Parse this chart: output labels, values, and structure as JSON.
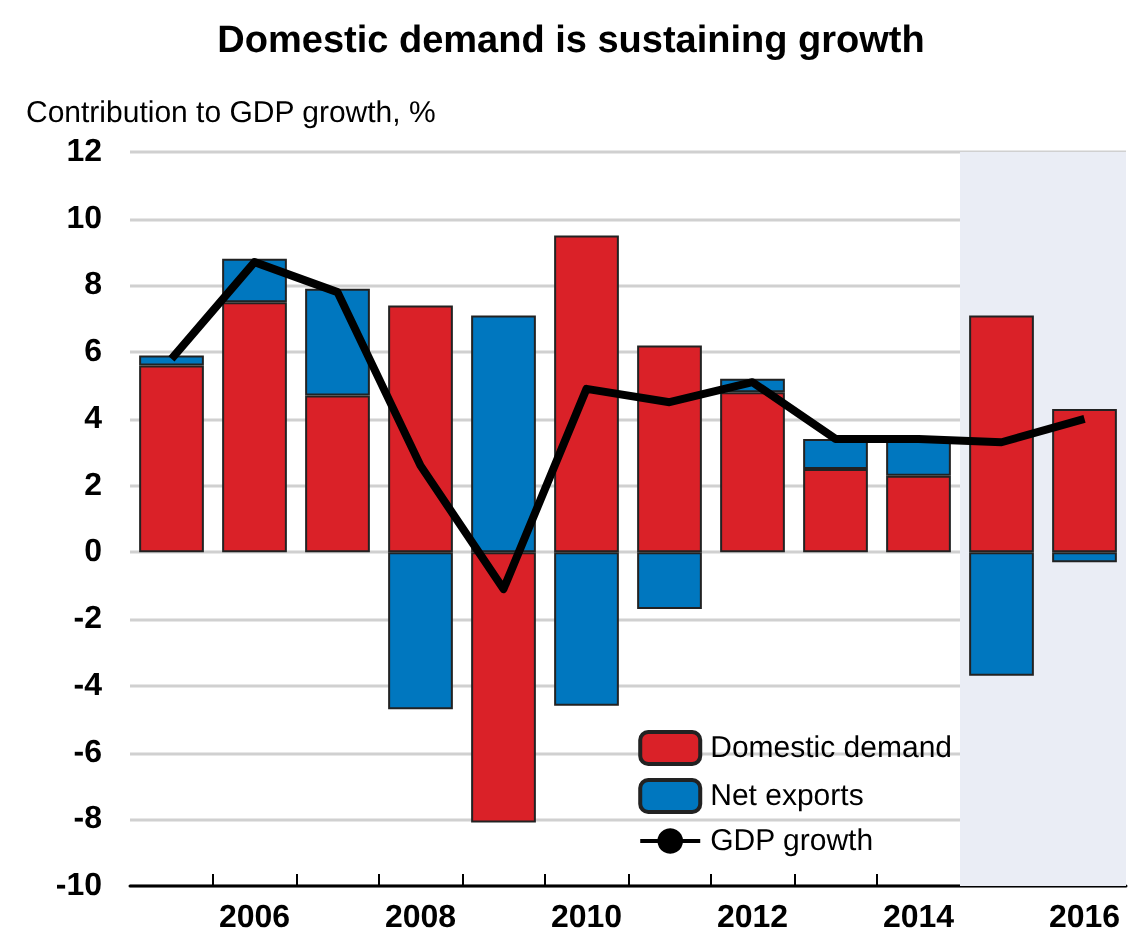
{
  "chart_data": {
    "type": "bar",
    "title": "Domestic demand is sustaining growth",
    "ylabel": "Contribution to GDP growth, %",
    "stacked": true,
    "x": [
      2005,
      2006,
      2007,
      2008,
      2009,
      2010,
      2011,
      2012,
      2013,
      2014,
      2015,
      2016
    ],
    "series": [
      {
        "name": "Domestic demand",
        "color": "#da2128",
        "values": [
          5.6,
          7.5,
          4.7,
          7.4,
          -8.1,
          9.5,
          6.2,
          4.8,
          2.5,
          2.3,
          7.1,
          4.3
        ]
      },
      {
        "name": "Net exports",
        "color": "#0077bf",
        "values": [
          0.3,
          1.3,
          3.2,
          -4.7,
          7.1,
          -4.6,
          -1.7,
          0.4,
          0.9,
          1.1,
          -3.7,
          -0.3
        ]
      },
      {
        "name": "GDP growth",
        "type": "line",
        "color": "#000000",
        "values": [
          5.8,
          8.7,
          7.8,
          2.6,
          -1.1,
          4.9,
          4.5,
          5.1,
          3.4,
          3.4,
          3.3,
          4.0
        ]
      }
    ],
    "xlim": [
      2004.5,
      2016.5
    ],
    "xticks": [
      {
        "value": 2005.5,
        "label": null
      },
      2006,
      {
        "value": 2006.5,
        "label": null
      },
      {
        "value": 2007.5,
        "label": null
      },
      2008,
      {
        "value": 2008.5,
        "label": null
      },
      {
        "value": 2009.5,
        "label": null
      },
      2010,
      {
        "value": 2010.5,
        "label": null
      },
      {
        "value": 2011.5,
        "label": null
      },
      2012,
      {
        "value": 2012.5,
        "label": null
      },
      {
        "value": 2013.5,
        "label": null
      },
      2014,
      {
        "value": 2014.5,
        "label": null
      },
      {
        "value": 2015.5,
        "label": null
      },
      2016
    ],
    "ylim": [
      -10,
      12
    ],
    "yticks": [
      -10,
      -8,
      -6,
      -4,
      -2,
      0,
      2,
      4,
      6,
      8,
      10,
      12
    ],
    "bands": [
      {
        "axis": "x",
        "from": 2014.5,
        "to": 2016.5,
        "color": "#eaedf5"
      }
    ],
    "grid": "y",
    "legend": "bottom right",
    "marker": "none"
  }
}
